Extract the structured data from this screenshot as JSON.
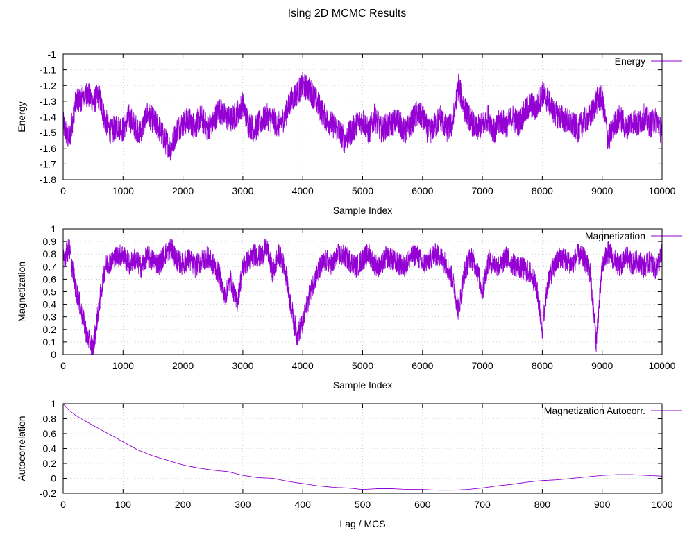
{
  "figure": {
    "title": "Ising 2D MCMC Results",
    "line_color": "#9400D3"
  },
  "chart_data": [
    {
      "id": "energy",
      "type": "line",
      "xlabel": "Sample Index",
      "ylabel": "Energy",
      "xlim": [
        0,
        10000
      ],
      "ylim": [
        -1.8,
        -1.0
      ],
      "xticks": [
        0,
        1000,
        2000,
        3000,
        4000,
        5000,
        6000,
        7000,
        8000,
        9000,
        10000
      ],
      "yticks": [
        -1.8,
        -1.7,
        -1.6,
        -1.5,
        -1.4,
        -1.3,
        -1.2,
        -1.1,
        -1.0
      ],
      "ytick_labels": [
        "-1.8",
        "-1.7",
        "-1.6",
        "-1.5",
        "-1.4",
        "-1.3",
        "-1.2",
        "-1.1",
        "-1"
      ],
      "grid": true,
      "legend_position": "top-right",
      "series": [
        {
          "name": "Energy",
          "x": [
            0,
            100,
            200,
            300,
            400,
            500,
            600,
            700,
            800,
            900,
            1000,
            1100,
            1200,
            1300,
            1400,
            1500,
            1600,
            1700,
            1800,
            1900,
            2000,
            2100,
            2200,
            2300,
            2400,
            2500,
            2600,
            2700,
            2800,
            2900,
            3000,
            3100,
            3200,
            3300,
            3400,
            3500,
            3600,
            3700,
            3800,
            3900,
            4000,
            4100,
            4200,
            4300,
            4400,
            4500,
            4600,
            4700,
            4800,
            4900,
            5000,
            5100,
            5200,
            5300,
            5400,
            5500,
            5600,
            5700,
            5800,
            5900,
            6000,
            6100,
            6200,
            6300,
            6400,
            6500,
            6600,
            6700,
            6800,
            6900,
            7000,
            7100,
            7200,
            7300,
            7400,
            7500,
            7600,
            7700,
            7800,
            7900,
            8000,
            8100,
            8200,
            8300,
            8400,
            8500,
            8600,
            8700,
            8800,
            8900,
            9000,
            9100,
            9200,
            9300,
            9400,
            9500,
            9600,
            9700,
            9800,
            9900,
            10000
          ],
          "values": [
            -1.45,
            -1.55,
            -1.32,
            -1.28,
            -1.25,
            -1.3,
            -1.27,
            -1.42,
            -1.5,
            -1.45,
            -1.48,
            -1.4,
            -1.46,
            -1.5,
            -1.38,
            -1.42,
            -1.47,
            -1.55,
            -1.6,
            -1.48,
            -1.44,
            -1.42,
            -1.46,
            -1.4,
            -1.47,
            -1.44,
            -1.35,
            -1.4,
            -1.42,
            -1.38,
            -1.32,
            -1.45,
            -1.48,
            -1.43,
            -1.4,
            -1.42,
            -1.45,
            -1.4,
            -1.3,
            -1.25,
            -1.2,
            -1.22,
            -1.28,
            -1.35,
            -1.42,
            -1.45,
            -1.48,
            -1.55,
            -1.5,
            -1.45,
            -1.42,
            -1.5,
            -1.4,
            -1.48,
            -1.46,
            -1.44,
            -1.42,
            -1.5,
            -1.45,
            -1.38,
            -1.4,
            -1.5,
            -1.46,
            -1.4,
            -1.48,
            -1.45,
            -1.2,
            -1.35,
            -1.42,
            -1.48,
            -1.45,
            -1.4,
            -1.5,
            -1.42,
            -1.45,
            -1.4,
            -1.44,
            -1.38,
            -1.32,
            -1.35,
            -1.25,
            -1.3,
            -1.38,
            -1.4,
            -1.42,
            -1.45,
            -1.48,
            -1.42,
            -1.4,
            -1.3,
            -1.28,
            -1.55,
            -1.45,
            -1.4,
            -1.48,
            -1.42,
            -1.45,
            -1.4,
            -1.45,
            -1.42,
            -1.5
          ]
        }
      ]
    },
    {
      "id": "magnetization",
      "type": "line",
      "xlabel": "Sample Index",
      "ylabel": "Magnetization",
      "xlim": [
        0,
        10000
      ],
      "ylim": [
        0,
        1
      ],
      "xticks": [
        0,
        1000,
        2000,
        3000,
        4000,
        5000,
        6000,
        7000,
        8000,
        9000,
        10000
      ],
      "yticks": [
        0,
        0.1,
        0.2,
        0.3,
        0.4,
        0.5,
        0.6,
        0.7,
        0.8,
        0.9,
        1
      ],
      "ytick_labels": [
        "0",
        "0.1",
        "0.2",
        "0.3",
        "0.4",
        "0.5",
        "0.6",
        "0.7",
        "0.8",
        "0.9",
        "1"
      ],
      "grid": true,
      "legend_position": "top-right",
      "series": [
        {
          "name": "Magnetization",
          "x": [
            0,
            100,
            200,
            300,
            400,
            500,
            600,
            700,
            800,
            900,
            1000,
            1100,
            1200,
            1300,
            1400,
            1500,
            1600,
            1700,
            1800,
            1900,
            2000,
            2100,
            2200,
            2300,
            2400,
            2500,
            2600,
            2700,
            2800,
            2900,
            3000,
            3100,
            3200,
            3300,
            3400,
            3500,
            3600,
            3700,
            3800,
            3900,
            4000,
            4100,
            4200,
            4300,
            4400,
            4500,
            4600,
            4700,
            4800,
            4900,
            5000,
            5100,
            5200,
            5300,
            5400,
            5500,
            5600,
            5700,
            5800,
            5900,
            6000,
            6100,
            6200,
            6300,
            6400,
            6500,
            6600,
            6700,
            6800,
            6900,
            7000,
            7100,
            7200,
            7300,
            7400,
            7500,
            7600,
            7700,
            7800,
            7900,
            8000,
            8100,
            8200,
            8300,
            8400,
            8500,
            8600,
            8700,
            8800,
            8900,
            9000,
            9100,
            9200,
            9300,
            9400,
            9500,
            9600,
            9700,
            9800,
            9900,
            10000
          ],
          "values": [
            0.75,
            0.85,
            0.55,
            0.35,
            0.15,
            0.05,
            0.4,
            0.7,
            0.75,
            0.78,
            0.8,
            0.72,
            0.76,
            0.7,
            0.78,
            0.75,
            0.72,
            0.8,
            0.85,
            0.75,
            0.72,
            0.76,
            0.7,
            0.74,
            0.78,
            0.72,
            0.65,
            0.45,
            0.6,
            0.4,
            0.7,
            0.75,
            0.8,
            0.78,
            0.85,
            0.65,
            0.8,
            0.7,
            0.4,
            0.15,
            0.25,
            0.45,
            0.6,
            0.7,
            0.75,
            0.72,
            0.8,
            0.78,
            0.74,
            0.7,
            0.76,
            0.8,
            0.72,
            0.7,
            0.78,
            0.75,
            0.72,
            0.7,
            0.78,
            0.8,
            0.72,
            0.75,
            0.8,
            0.78,
            0.72,
            0.6,
            0.35,
            0.65,
            0.78,
            0.7,
            0.5,
            0.75,
            0.72,
            0.7,
            0.78,
            0.72,
            0.7,
            0.68,
            0.65,
            0.55,
            0.2,
            0.6,
            0.7,
            0.78,
            0.75,
            0.72,
            0.8,
            0.76,
            0.65,
            0.1,
            0.7,
            0.82,
            0.75,
            0.7,
            0.78,
            0.72,
            0.75,
            0.7,
            0.74,
            0.68,
            0.8
          ]
        }
      ]
    },
    {
      "id": "autocorr",
      "type": "line",
      "xlabel": "Lag / MCS",
      "ylabel": "Autocorrelation",
      "xlim": [
        0,
        1000
      ],
      "ylim": [
        -0.2,
        1
      ],
      "xticks": [
        0,
        100,
        200,
        300,
        400,
        500,
        600,
        700,
        800,
        900,
        1000
      ],
      "yticks": [
        -0.2,
        0,
        0.2,
        0.4,
        0.6,
        0.8,
        1
      ],
      "ytick_labels": [
        "-0.2",
        "0",
        "0.2",
        "0.4",
        "0.6",
        "0.8",
        "1"
      ],
      "grid": true,
      "legend_position": "top-right",
      "series": [
        {
          "name": "Magnetization Autocorr.",
          "x": [
            0,
            10,
            20,
            30,
            50,
            75,
            100,
            125,
            150,
            175,
            200,
            225,
            250,
            275,
            300,
            325,
            350,
            375,
            400,
            425,
            450,
            475,
            500,
            525,
            550,
            575,
            600,
            625,
            650,
            675,
            700,
            725,
            750,
            775,
            800,
            825,
            850,
            875,
            900,
            925,
            950,
            975,
            1000
          ],
          "values": [
            1.0,
            0.91,
            0.85,
            0.8,
            0.71,
            0.6,
            0.49,
            0.38,
            0.3,
            0.24,
            0.18,
            0.14,
            0.11,
            0.09,
            0.04,
            0.01,
            0.0,
            -0.04,
            -0.07,
            -0.1,
            -0.12,
            -0.13,
            -0.15,
            -0.14,
            -0.14,
            -0.15,
            -0.15,
            -0.16,
            -0.16,
            -0.15,
            -0.13,
            -0.1,
            -0.08,
            -0.05,
            -0.03,
            -0.02,
            0.0,
            0.02,
            0.04,
            0.05,
            0.05,
            0.04,
            0.03
          ]
        }
      ]
    }
  ]
}
